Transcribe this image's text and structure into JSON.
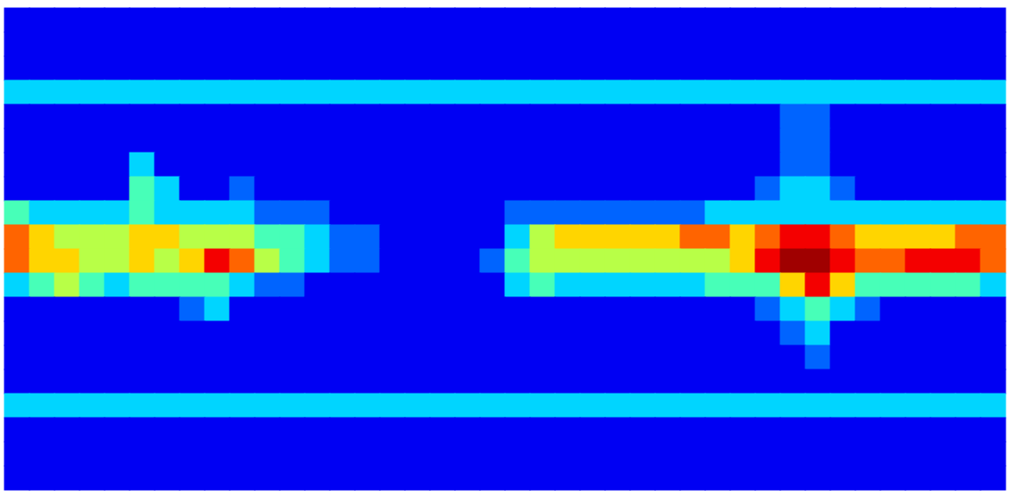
{
  "chart_data": {
    "type": "heatmap",
    "tick_labels": false,
    "color_domain": [
      0,
      9
    ],
    "cells": [
      [
        1,
        1,
        1,
        1,
        1,
        1,
        1,
        1,
        1,
        1,
        1,
        1,
        1,
        1,
        1,
        1,
        1,
        1,
        1,
        1,
        1,
        1,
        1,
        1,
        1,
        1,
        1,
        1,
        1,
        1,
        1,
        1,
        1,
        1,
        1,
        1,
        1,
        1,
        1,
        1
      ],
      [
        1,
        1,
        1,
        1,
        1,
        1,
        1,
        1,
        1,
        1,
        1,
        1,
        1,
        1,
        1,
        1,
        1,
        1,
        1,
        1,
        1,
        1,
        1,
        1,
        1,
        1,
        1,
        1,
        1,
        1,
        1,
        1,
        1,
        1,
        1,
        1,
        1,
        1,
        1,
        1
      ],
      [
        1,
        1,
        1,
        1,
        1,
        1,
        1,
        1,
        1,
        1,
        1,
        1,
        1,
        1,
        1,
        1,
        1,
        1,
        1,
        1,
        1,
        1,
        1,
        1,
        1,
        1,
        1,
        1,
        1,
        1,
        1,
        1,
        1,
        1,
        1,
        1,
        1,
        1,
        1,
        1
      ],
      [
        3,
        3,
        3,
        3,
        3,
        3,
        3,
        3,
        3,
        3,
        3,
        3,
        3,
        3,
        3,
        3,
        3,
        3,
        3,
        3,
        3,
        3,
        3,
        3,
        3,
        3,
        3,
        3,
        3,
        3,
        3,
        3,
        3,
        3,
        3,
        3,
        3,
        3,
        3,
        3
      ],
      [
        1,
        1,
        1,
        1,
        1,
        1,
        1,
        1,
        1,
        1,
        1,
        1,
        1,
        1,
        1,
        1,
        1,
        1,
        1,
        1,
        1,
        1,
        1,
        1,
        1,
        1,
        1,
        1,
        1,
        1,
        1,
        2,
        2,
        1,
        1,
        1,
        1,
        1,
        1,
        1
      ],
      [
        1,
        1,
        1,
        1,
        1,
        1,
        1,
        1,
        1,
        1,
        1,
        1,
        1,
        1,
        1,
        1,
        1,
        1,
        1,
        1,
        1,
        1,
        1,
        1,
        1,
        1,
        1,
        1,
        1,
        1,
        1,
        2,
        2,
        1,
        1,
        1,
        1,
        1,
        1,
        1
      ],
      [
        1,
        1,
        1,
        1,
        1,
        3,
        1,
        1,
        1,
        1,
        1,
        1,
        1,
        1,
        1,
        1,
        1,
        1,
        1,
        1,
        1,
        1,
        1,
        1,
        1,
        1,
        1,
        1,
        1,
        1,
        1,
        2,
        2,
        1,
        1,
        1,
        1,
        1,
        1,
        1
      ],
      [
        1,
        1,
        1,
        1,
        1,
        4,
        3,
        1,
        1,
        2,
        1,
        1,
        1,
        1,
        1,
        1,
        1,
        1,
        1,
        1,
        1,
        1,
        1,
        1,
        1,
        1,
        1,
        1,
        1,
        1,
        2,
        3,
        3,
        2,
        1,
        1,
        1,
        1,
        1,
        1
      ],
      [
        4,
        3,
        3,
        3,
        3,
        4,
        3,
        3,
        3,
        3,
        2,
        2,
        2,
        1,
        1,
        1,
        1,
        1,
        1,
        1,
        2,
        2,
        2,
        2,
        2,
        2,
        2,
        2,
        3,
        3,
        3,
        3,
        3,
        3,
        3,
        3,
        3,
        3,
        3,
        3
      ],
      [
        7,
        6,
        5,
        5,
        5,
        6,
        6,
        5,
        5,
        5,
        4,
        4,
        3,
        2,
        2,
        1,
        1,
        1,
        1,
        1,
        3,
        5,
        6,
        6,
        6,
        6,
        6,
        7,
        7,
        6,
        7,
        8,
        8,
        7,
        6,
        6,
        6,
        6,
        7,
        7
      ],
      [
        7,
        6,
        6,
        5,
        5,
        6,
        5,
        6,
        8,
        7,
        5,
        4,
        3,
        2,
        2,
        1,
        1,
        1,
        1,
        2,
        4,
        5,
        5,
        5,
        5,
        5,
        5,
        5,
        5,
        6,
        8,
        9,
        9,
        8,
        7,
        7,
        8,
        8,
        8,
        7
      ],
      [
        3,
        4,
        5,
        4,
        3,
        4,
        4,
        4,
        4,
        3,
        2,
        2,
        1,
        1,
        1,
        1,
        1,
        1,
        1,
        1,
        3,
        4,
        3,
        3,
        3,
        3,
        3,
        3,
        4,
        4,
        4,
        6,
        8,
        6,
        4,
        4,
        4,
        4,
        4,
        3
      ],
      [
        1,
        1,
        1,
        1,
        1,
        1,
        1,
        2,
        3,
        1,
        1,
        1,
        1,
        1,
        1,
        1,
        1,
        1,
        1,
        1,
        1,
        1,
        1,
        1,
        1,
        1,
        1,
        1,
        1,
        1,
        2,
        3,
        4,
        3,
        2,
        1,
        1,
        1,
        1,
        1
      ],
      [
        1,
        1,
        1,
        1,
        1,
        1,
        1,
        1,
        1,
        1,
        1,
        1,
        1,
        1,
        1,
        1,
        1,
        1,
        1,
        1,
        1,
        1,
        1,
        1,
        1,
        1,
        1,
        1,
        1,
        1,
        1,
        2,
        3,
        1,
        1,
        1,
        1,
        1,
        1,
        1
      ],
      [
        1,
        1,
        1,
        1,
        1,
        1,
        1,
        1,
        1,
        1,
        1,
        1,
        1,
        1,
        1,
        1,
        1,
        1,
        1,
        1,
        1,
        1,
        1,
        1,
        1,
        1,
        1,
        1,
        1,
        1,
        1,
        1,
        2,
        1,
        1,
        1,
        1,
        1,
        1,
        1
      ],
      [
        1,
        1,
        1,
        1,
        1,
        1,
        1,
        1,
        1,
        1,
        1,
        1,
        1,
        1,
        1,
        1,
        1,
        1,
        1,
        1,
        1,
        1,
        1,
        1,
        1,
        1,
        1,
        1,
        1,
        1,
        1,
        1,
        1,
        1,
        1,
        1,
        1,
        1,
        1,
        1
      ],
      [
        3,
        3,
        3,
        3,
        3,
        3,
        3,
        3,
        3,
        3,
        3,
        3,
        3,
        3,
        3,
        3,
        3,
        3,
        3,
        3,
        3,
        3,
        3,
        3,
        3,
        3,
        3,
        3,
        3,
        3,
        3,
        3,
        3,
        3,
        3,
        3,
        3,
        3,
        3,
        3
      ],
      [
        1,
        1,
        1,
        1,
        1,
        1,
        1,
        1,
        1,
        1,
        1,
        1,
        1,
        1,
        1,
        1,
        1,
        1,
        1,
        1,
        1,
        1,
        1,
        1,
        1,
        1,
        1,
        1,
        1,
        1,
        1,
        1,
        1,
        1,
        1,
        1,
        1,
        1,
        1,
        1
      ],
      [
        1,
        1,
        1,
        1,
        1,
        1,
        1,
        1,
        1,
        1,
        1,
        1,
        1,
        1,
        1,
        1,
        1,
        1,
        1,
        1,
        1,
        1,
        1,
        1,
        1,
        1,
        1,
        1,
        1,
        1,
        1,
        1,
        1,
        1,
        1,
        1,
        1,
        1,
        1,
        1
      ],
      [
        1,
        1,
        1,
        1,
        1,
        1,
        1,
        1,
        1,
        1,
        1,
        1,
        1,
        1,
        1,
        1,
        1,
        1,
        1,
        1,
        1,
        1,
        1,
        1,
        1,
        1,
        1,
        1,
        1,
        1,
        1,
        1,
        1,
        1,
        1,
        1,
        1,
        1,
        1,
        1
      ]
    ]
  }
}
